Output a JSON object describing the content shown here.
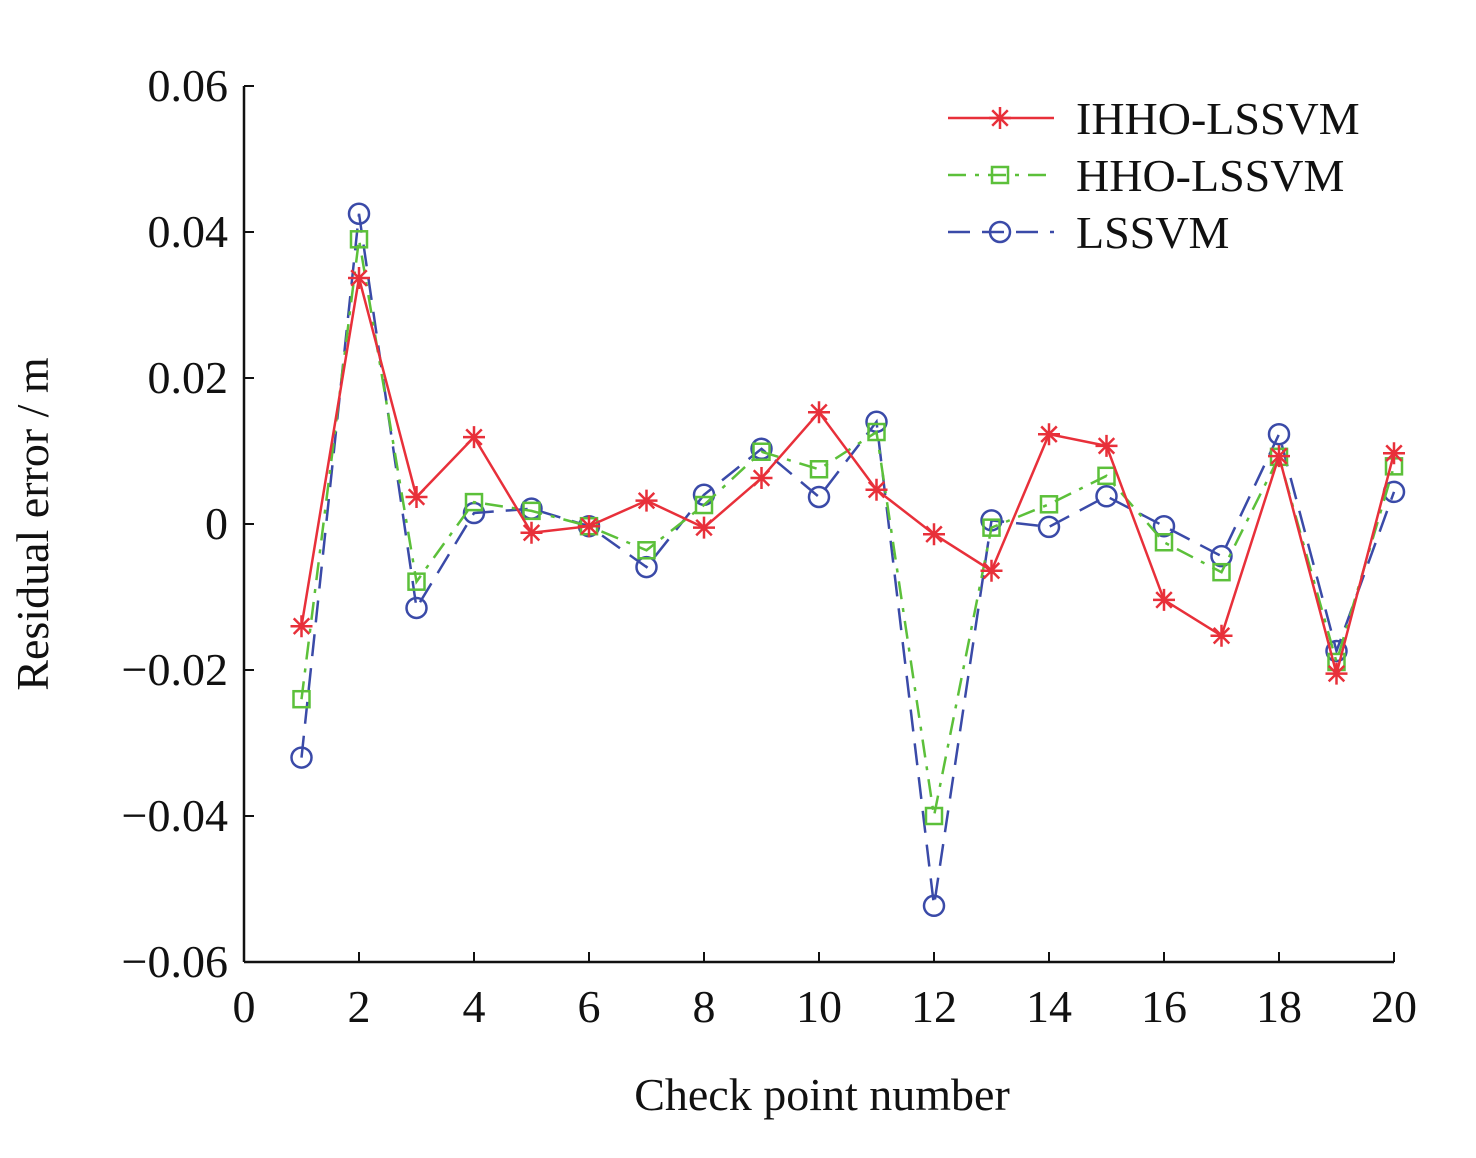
{
  "chart_data": {
    "type": "line",
    "title": "",
    "xlabel": "Check point number",
    "ylabel": "Residual error / m",
    "xlim": [
      0,
      20
    ],
    "ylim": [
      -0.06,
      0.06
    ],
    "xticks": [
      "0",
      "2",
      "4",
      "6",
      "8",
      "10",
      "12",
      "14",
      "16",
      "18",
      "20"
    ],
    "yticks": [
      "−0.06",
      "−0.04",
      "−0.02",
      "0",
      "0.02",
      "0.04",
      "0.06"
    ],
    "grid": false,
    "legend_position": "top-right",
    "x": [
      1,
      2,
      3,
      4,
      5,
      6,
      7,
      8,
      9,
      10,
      11,
      12,
      13,
      14,
      15,
      16,
      17,
      18,
      19,
      20
    ],
    "series": [
      {
        "name": "IHHO-LSSVM",
        "color": "#e8303a",
        "marker": "asterisk",
        "line": "solid",
        "values": [
          -0.014,
          0.0337,
          0.0037,
          0.0119,
          -0.0012,
          -0.0003,
          0.0032,
          -0.0005,
          0.0063,
          0.0153,
          0.0047,
          -0.0014,
          -0.0064,
          0.0123,
          0.0107,
          -0.0104,
          -0.0153,
          0.0093,
          -0.0205,
          0.0097
        ]
      },
      {
        "name": "HHO-LSSVM",
        "color": "#5cc03a",
        "marker": "square",
        "line": "dash-dot",
        "values": [
          -0.024,
          0.039,
          -0.0079,
          0.003,
          0.0018,
          -0.0003,
          -0.0036,
          0.0026,
          0.0099,
          0.0075,
          0.0126,
          -0.04,
          -0.0005,
          0.0027,
          0.0066,
          -0.0025,
          -0.0066,
          0.0092,
          -0.0189,
          0.0079
        ]
      },
      {
        "name": "LSSVM",
        "color": "#3a4aa8",
        "marker": "circle",
        "line": "dashed",
        "values": [
          -0.032,
          0.0425,
          -0.0115,
          0.0015,
          0.0021,
          -0.0003,
          -0.0059,
          0.004,
          0.0103,
          0.0037,
          0.014,
          -0.0523,
          0.0005,
          -0.0004,
          0.0038,
          -0.0003,
          -0.0044,
          0.0123,
          -0.0174,
          0.0044
        ]
      }
    ]
  }
}
